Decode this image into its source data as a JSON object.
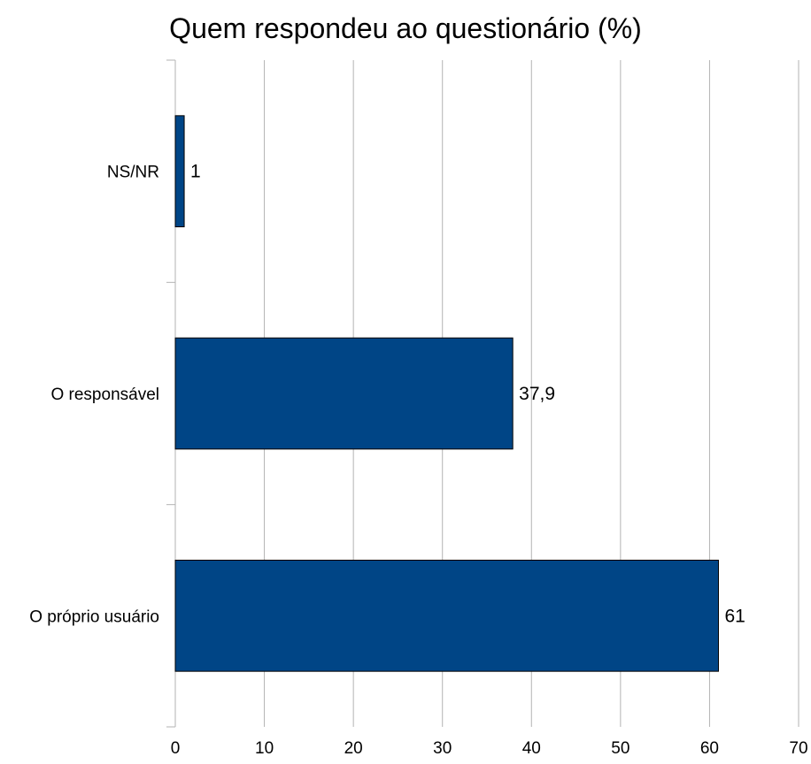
{
  "chart_data": {
    "type": "bar",
    "orientation": "horizontal",
    "title": "Quem respondeu ao questionário (%)",
    "categories": [
      "NS/NR",
      "O responsável",
      "O próprio usuário"
    ],
    "values": [
      1,
      37.9,
      61
    ],
    "data_labels": [
      "1",
      "37,9",
      "61"
    ],
    "xlim": [
      0,
      70
    ],
    "x_ticks": [
      0,
      10,
      20,
      30,
      40,
      50,
      60,
      70
    ],
    "xlabel": "",
    "ylabel": "",
    "grid": true,
    "legend": "none",
    "colors": {
      "bar": "#004586",
      "bar_edge": "#000000",
      "grid": "#b3b3b3"
    }
  }
}
